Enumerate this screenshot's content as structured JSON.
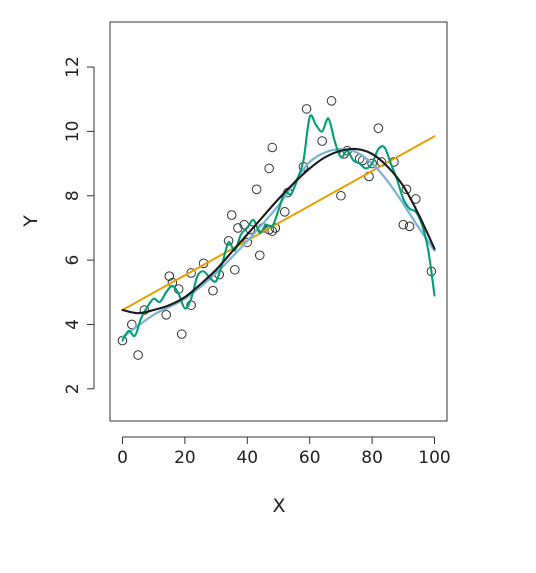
{
  "chart_data": {
    "type": "scatter",
    "title": "",
    "xlabel": "X",
    "ylabel": "Y",
    "xlim": [
      -4,
      104
    ],
    "ylim": [
      1,
      13.4
    ],
    "x_ticks": [
      0,
      20,
      40,
      60,
      80,
      100
    ],
    "y_ticks": [
      2,
      4,
      6,
      8,
      10,
      12
    ],
    "grid": false,
    "legend": "none",
    "points": {
      "x": [
        0,
        3,
        5,
        7,
        14,
        15,
        16,
        18,
        19,
        22,
        22,
        26,
        29,
        31,
        34,
        35,
        36,
        37,
        39,
        40,
        41,
        43,
        44,
        45,
        47,
        47,
        48,
        48,
        49,
        52,
        53,
        58,
        59,
        64,
        67,
        70,
        71,
        72,
        76,
        77,
        79,
        80,
        82,
        83,
        87,
        90,
        91,
        92,
        94,
        99
      ],
      "y": [
        3.5,
        4.0,
        3.05,
        4.45,
        4.3,
        5.5,
        5.3,
        5.1,
        3.7,
        4.6,
        5.6,
        5.9,
        5.05,
        5.55,
        6.6,
        7.4,
        5.7,
        7.0,
        7.1,
        6.55,
        6.95,
        8.2,
        6.15,
        7.0,
        8.85,
        6.95,
        9.5,
        6.9,
        7.0,
        7.5,
        8.1,
        8.9,
        10.7,
        9.7,
        10.95,
        8.0,
        9.3,
        9.4,
        9.15,
        9.1,
        8.6,
        9.0,
        10.1,
        9.05,
        9.05,
        7.1,
        8.2,
        7.05,
        7.9,
        5.65
      ]
    },
    "series": [
      {
        "role": "linear fit",
        "color": "#E69F00",
        "x": [
          0,
          100
        ],
        "y": [
          4.45,
          9.85
        ]
      },
      {
        "role": "smooth fit",
        "color": "#7FB3D5",
        "x": [
          0,
          10,
          20,
          30,
          40,
          50,
          55,
          60,
          65,
          70,
          75,
          80,
          85,
          90,
          95,
          100
        ],
        "y": [
          3.6,
          4.3,
          4.8,
          5.6,
          6.6,
          7.7,
          8.4,
          9.05,
          9.35,
          9.45,
          9.35,
          9.0,
          8.45,
          7.75,
          7.0,
          6.3
        ]
      },
      {
        "role": "wiggly fit",
        "color": "#009E73",
        "x": [
          0,
          2,
          4,
          6,
          8,
          10,
          12,
          14,
          16,
          18,
          20,
          22,
          24,
          26,
          28,
          30,
          32,
          34,
          36,
          38,
          40,
          42,
          44,
          46,
          48,
          50,
          52,
          54,
          56,
          58,
          60,
          62,
          64,
          66,
          68,
          70,
          72,
          74,
          76,
          78,
          80,
          82,
          84,
          86,
          88,
          90,
          92,
          94,
          96,
          98,
          100
        ],
        "y": [
          3.5,
          3.8,
          3.65,
          4.2,
          4.55,
          4.8,
          4.7,
          5.0,
          5.2,
          4.95,
          4.5,
          4.8,
          5.5,
          5.65,
          5.45,
          5.35,
          5.9,
          6.55,
          6.3,
          6.8,
          7.0,
          7.25,
          6.85,
          7.1,
          7.05,
          7.55,
          8.1,
          8.05,
          8.5,
          9.1,
          10.45,
          10.2,
          10.0,
          10.4,
          9.7,
          9.2,
          9.4,
          9.1,
          9.0,
          8.85,
          9.0,
          9.45,
          9.5,
          9.0,
          8.5,
          7.9,
          7.6,
          7.5,
          7.1,
          6.3,
          4.9
        ]
      },
      {
        "role": "cubic fit",
        "color": "#1a1a1a",
        "x": [
          0,
          5,
          10,
          15,
          20,
          25,
          30,
          35,
          40,
          45,
          50,
          55,
          60,
          65,
          70,
          75,
          80,
          85,
          90,
          95,
          100
        ],
        "y": [
          4.45,
          4.35,
          4.45,
          4.6,
          4.85,
          5.25,
          5.7,
          6.25,
          6.8,
          7.35,
          7.9,
          8.4,
          8.85,
          9.2,
          9.4,
          9.45,
          9.3,
          8.9,
          8.3,
          7.4,
          6.35
        ]
      }
    ]
  }
}
